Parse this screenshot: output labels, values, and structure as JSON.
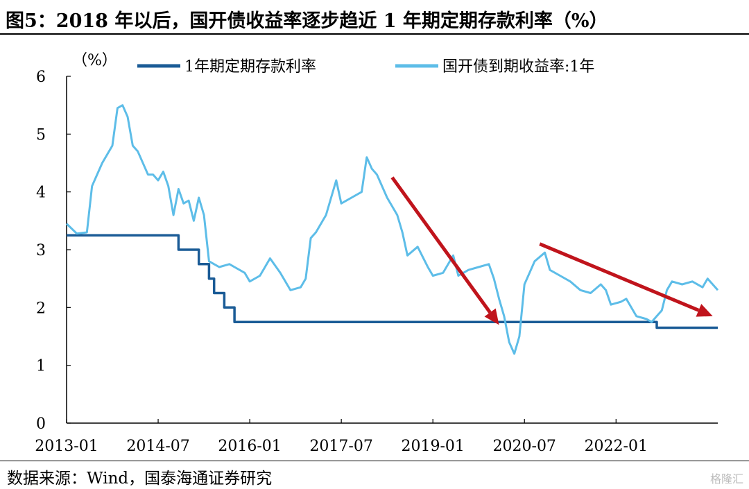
{
  "header": {
    "title": "图5：2018 年以后，国开债收益率逐步趋近 1 年期定期存款利率（%）"
  },
  "footer": {
    "source": "数据来源：Wind，国泰海通证券研究",
    "watermark": "格隆汇"
  },
  "colors": {
    "deposit_rate": "#1a5b96",
    "cdb_yield": "#5dbde8",
    "arrows": "#c0141c"
  },
  "chart_data": {
    "type": "line",
    "title": "2018 年以后，国开债收益率逐步趋近 1 年期定期存款利率（%）",
    "unit_label": "（%）",
    "xlabel": "",
    "ylabel": "",
    "ylim": [
      0,
      6
    ],
    "yticks": [
      "0",
      "1",
      "2",
      "3",
      "4",
      "5",
      "6"
    ],
    "xticks": [
      "2013-01",
      "2014-07",
      "2016-01",
      "2017-07",
      "2019-01",
      "2020-07",
      "2022-01"
    ],
    "xlim": [
      "2013-01",
      "2023-09"
    ],
    "grid": false,
    "legend_position": "top",
    "series": [
      {
        "name": "1年期定期存款利率",
        "step": true,
        "points": [
          [
            "2013-01",
            3.25
          ],
          [
            "2014-11",
            3.0
          ],
          [
            "2015-03",
            2.75
          ],
          [
            "2015-05",
            2.5
          ],
          [
            "2015-06",
            2.25
          ],
          [
            "2015-08",
            2.0
          ],
          [
            "2015-10",
            1.75
          ],
          [
            "2022-09",
            1.65
          ],
          [
            "2023-09",
            1.65
          ]
        ]
      },
      {
        "name": "国开债到期收益率:1年",
        "points": [
          [
            "2013-01",
            3.45
          ],
          [
            "2013-03",
            3.28
          ],
          [
            "2013-05",
            3.3
          ],
          [
            "2013-06",
            4.1
          ],
          [
            "2013-08",
            4.5
          ],
          [
            "2013-10",
            4.8
          ],
          [
            "2013-11",
            5.45
          ],
          [
            "2013-12",
            5.5
          ],
          [
            "2014-01",
            5.3
          ],
          [
            "2014-02",
            4.8
          ],
          [
            "2014-03",
            4.7
          ],
          [
            "2014-05",
            4.3
          ],
          [
            "2014-06",
            4.3
          ],
          [
            "2014-07",
            4.2
          ],
          [
            "2014-08",
            4.35
          ],
          [
            "2014-09",
            4.1
          ],
          [
            "2014-10",
            3.6
          ],
          [
            "2014-11",
            4.05
          ],
          [
            "2014-12",
            3.8
          ],
          [
            "2015-01",
            3.85
          ],
          [
            "2015-02",
            3.5
          ],
          [
            "2015-03",
            3.9
          ],
          [
            "2015-04",
            3.6
          ],
          [
            "2015-05",
            2.8
          ],
          [
            "2015-07",
            2.7
          ],
          [
            "2015-09",
            2.75
          ],
          [
            "2015-10",
            2.7
          ],
          [
            "2015-12",
            2.6
          ],
          [
            "2016-01",
            2.45
          ],
          [
            "2016-03",
            2.55
          ],
          [
            "2016-05",
            2.85
          ],
          [
            "2016-07",
            2.6
          ],
          [
            "2016-09",
            2.3
          ],
          [
            "2016-11",
            2.35
          ],
          [
            "2016-12",
            2.5
          ],
          [
            "2017-01",
            3.2
          ],
          [
            "2017-02",
            3.3
          ],
          [
            "2017-04",
            3.6
          ],
          [
            "2017-06",
            4.2
          ],
          [
            "2017-07",
            3.8
          ],
          [
            "2017-09",
            3.9
          ],
          [
            "2017-11",
            4.0
          ],
          [
            "2017-12",
            4.6
          ],
          [
            "2018-01",
            4.4
          ],
          [
            "2018-02",
            4.3
          ],
          [
            "2018-04",
            3.9
          ],
          [
            "2018-05",
            3.75
          ],
          [
            "2018-06",
            3.6
          ],
          [
            "2018-07",
            3.3
          ],
          [
            "2018-08",
            2.9
          ],
          [
            "2018-10",
            3.05
          ],
          [
            "2018-12",
            2.7
          ],
          [
            "2019-01",
            2.55
          ],
          [
            "2019-03",
            2.6
          ],
          [
            "2019-05",
            2.9
          ],
          [
            "2019-06",
            2.55
          ],
          [
            "2019-08",
            2.65
          ],
          [
            "2019-10",
            2.7
          ],
          [
            "2019-12",
            2.75
          ],
          [
            "2020-01",
            2.5
          ],
          [
            "2020-02",
            2.15
          ],
          [
            "2020-03",
            1.85
          ],
          [
            "2020-04",
            1.4
          ],
          [
            "2020-05",
            1.2
          ],
          [
            "2020-06",
            1.5
          ],
          [
            "2020-07",
            2.4
          ],
          [
            "2020-08",
            2.6
          ],
          [
            "2020-09",
            2.8
          ],
          [
            "2020-11",
            2.95
          ],
          [
            "2020-12",
            2.65
          ],
          [
            "2021-02",
            2.55
          ],
          [
            "2021-04",
            2.45
          ],
          [
            "2021-06",
            2.3
          ],
          [
            "2021-08",
            2.25
          ],
          [
            "2021-10",
            2.4
          ],
          [
            "2021-11",
            2.3
          ],
          [
            "2021-12",
            2.05
          ],
          [
            "2022-02",
            2.1
          ],
          [
            "2022-03",
            2.15
          ],
          [
            "2022-05",
            1.85
          ],
          [
            "2022-07",
            1.8
          ],
          [
            "2022-08",
            1.75
          ],
          [
            "2022-09",
            1.85
          ],
          [
            "2022-10",
            1.95
          ],
          [
            "2022-11",
            2.3
          ],
          [
            "2022-12",
            2.45
          ],
          [
            "2023-02",
            2.4
          ],
          [
            "2023-04",
            2.45
          ],
          [
            "2023-06",
            2.35
          ],
          [
            "2023-07",
            2.5
          ],
          [
            "2023-09",
            2.3
          ]
        ]
      }
    ],
    "annotations": [
      {
        "type": "arrow",
        "from": [
          "2018-05",
          4.25
        ],
        "to": [
          "2020-02",
          1.7
        ]
      },
      {
        "type": "arrow",
        "from": [
          "2020-10",
          3.1
        ],
        "to": [
          "2023-08",
          1.85
        ]
      }
    ]
  }
}
